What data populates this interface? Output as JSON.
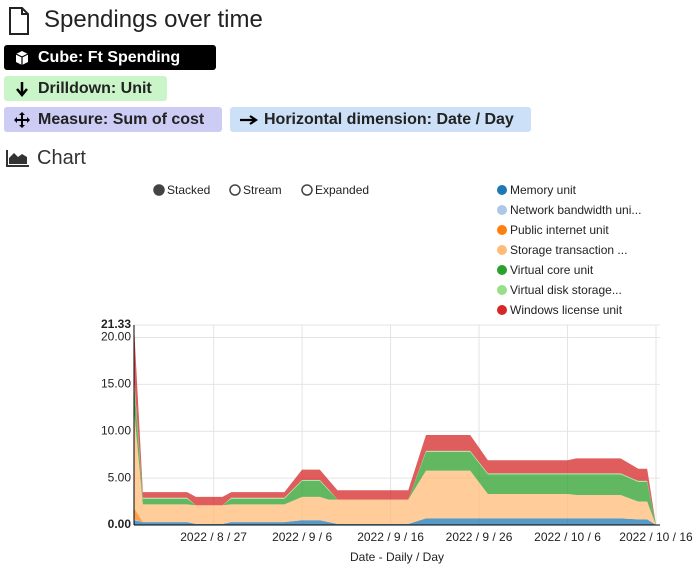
{
  "header": {
    "title": "Spendings over time"
  },
  "badges": [
    "Cube: Ft Spending",
    "Drilldown: Unit",
    "Measure: Sum of cost",
    "Horizontal dimension: Date / Day"
  ],
  "section_title": "Chart",
  "controls": {
    "options": [
      "Stacked",
      "Stream",
      "Expanded"
    ],
    "selected": "Stacked"
  },
  "chart_data": {
    "type": "area",
    "stacked": true,
    "x_label": "Date - Daily / Day",
    "x": [
      "2022-08-18",
      "2022-08-19",
      "2022-08-24",
      "2022-08-25",
      "2022-08-28",
      "2022-08-29",
      "2022-09-04",
      "2022-09-06",
      "2022-09-08",
      "2022-09-09",
      "2022-09-10",
      "2022-09-18",
      "2022-09-20",
      "2022-09-25",
      "2022-09-27",
      "2022-10-06",
      "2022-10-07",
      "2022-10-12",
      "2022-10-14",
      "2022-10-15",
      "2022-10-16"
    ],
    "xlim": [
      "2022-08-18",
      "2022-10-16"
    ],
    "xticks": [
      {
        "value": "2022-08-27",
        "label": "2022 / 8 / 27"
      },
      {
        "value": "2022-09-06",
        "label": "2022 / 9 / 6"
      },
      {
        "value": "2022-09-16",
        "label": "2022 / 9 / 16"
      },
      {
        "value": "2022-09-26",
        "label": "2022 / 9 / 26"
      },
      {
        "value": "2022-10-06",
        "label": "2022 / 10 / 6"
      },
      {
        "value": "2022-10-16",
        "label": "2022 / 10 / 16"
      }
    ],
    "ylim": [
      0,
      21.33
    ],
    "yticks": [
      {
        "value": 0,
        "label": "0.00"
      },
      {
        "value": 5,
        "label": "5.00"
      },
      {
        "value": 10,
        "label": "10.00"
      },
      {
        "value": 15,
        "label": "15.00"
      },
      {
        "value": 20,
        "label": "20.00"
      },
      21.33
    ],
    "grid": true,
    "series": [
      {
        "name": "Memory unit",
        "color": "#1f77b4",
        "values": [
          0.5,
          0.3,
          0.3,
          0.1,
          0.1,
          0.3,
          0.3,
          0.5,
          0.5,
          0.3,
          0.1,
          0.1,
          0.7,
          0.7,
          0.7,
          0.7,
          0.7,
          0.7,
          0.6,
          0.6,
          0
        ]
      },
      {
        "name": "Network bandwidth uni...",
        "color": "#aec7e8",
        "values": [
          0.1,
          0,
          0,
          0,
          0,
          0,
          0,
          0,
          0,
          0,
          0,
          0,
          0,
          0,
          0,
          0,
          0,
          0,
          0,
          0,
          0
        ]
      },
      {
        "name": "Public internet unit",
        "color": "#ff7f0e",
        "values": [
          1.2,
          0,
          0,
          0,
          0,
          0,
          0,
          0,
          0,
          0,
          0,
          0,
          0,
          0,
          0,
          0,
          0,
          0,
          0,
          0,
          0
        ]
      },
      {
        "name": "Storage transaction ...",
        "color": "#ffbb78",
        "values": [
          10.5,
          1.9,
          1.9,
          2.0,
          2.0,
          1.9,
          1.9,
          2.5,
          2.5,
          2.4,
          2.6,
          2.6,
          5.1,
          5.1,
          2.6,
          2.6,
          2.5,
          2.5,
          1.9,
          1.9,
          0
        ]
      },
      {
        "name": "Virtual core unit",
        "color": "#2ca02c",
        "values": [
          3.0,
          0.6,
          0.6,
          0,
          0,
          0.6,
          0.6,
          1.7,
          1.7,
          1.0,
          0,
          0,
          2.0,
          2.0,
          2.1,
          2.1,
          2.2,
          2.2,
          2.1,
          2.1,
          0
        ]
      },
      {
        "name": "Virtual disk storage...",
        "color": "#98df8a",
        "values": [
          0.5,
          0.1,
          0.1,
          0,
          0,
          0.1,
          0.1,
          0.1,
          0.1,
          0.1,
          0,
          0,
          0.1,
          0.1,
          0.1,
          0.1,
          0.1,
          0.1,
          0.1,
          0.1,
          0
        ]
      },
      {
        "name": "Windows license unit",
        "color": "#d62728",
        "values": [
          5.53,
          0.6,
          0.6,
          0.9,
          0.9,
          0.6,
          0.6,
          1.1,
          1.1,
          1.0,
          1.0,
          1.0,
          1.7,
          1.7,
          1.4,
          1.4,
          1.6,
          1.6,
          1.3,
          1.3,
          0
        ]
      }
    ]
  }
}
